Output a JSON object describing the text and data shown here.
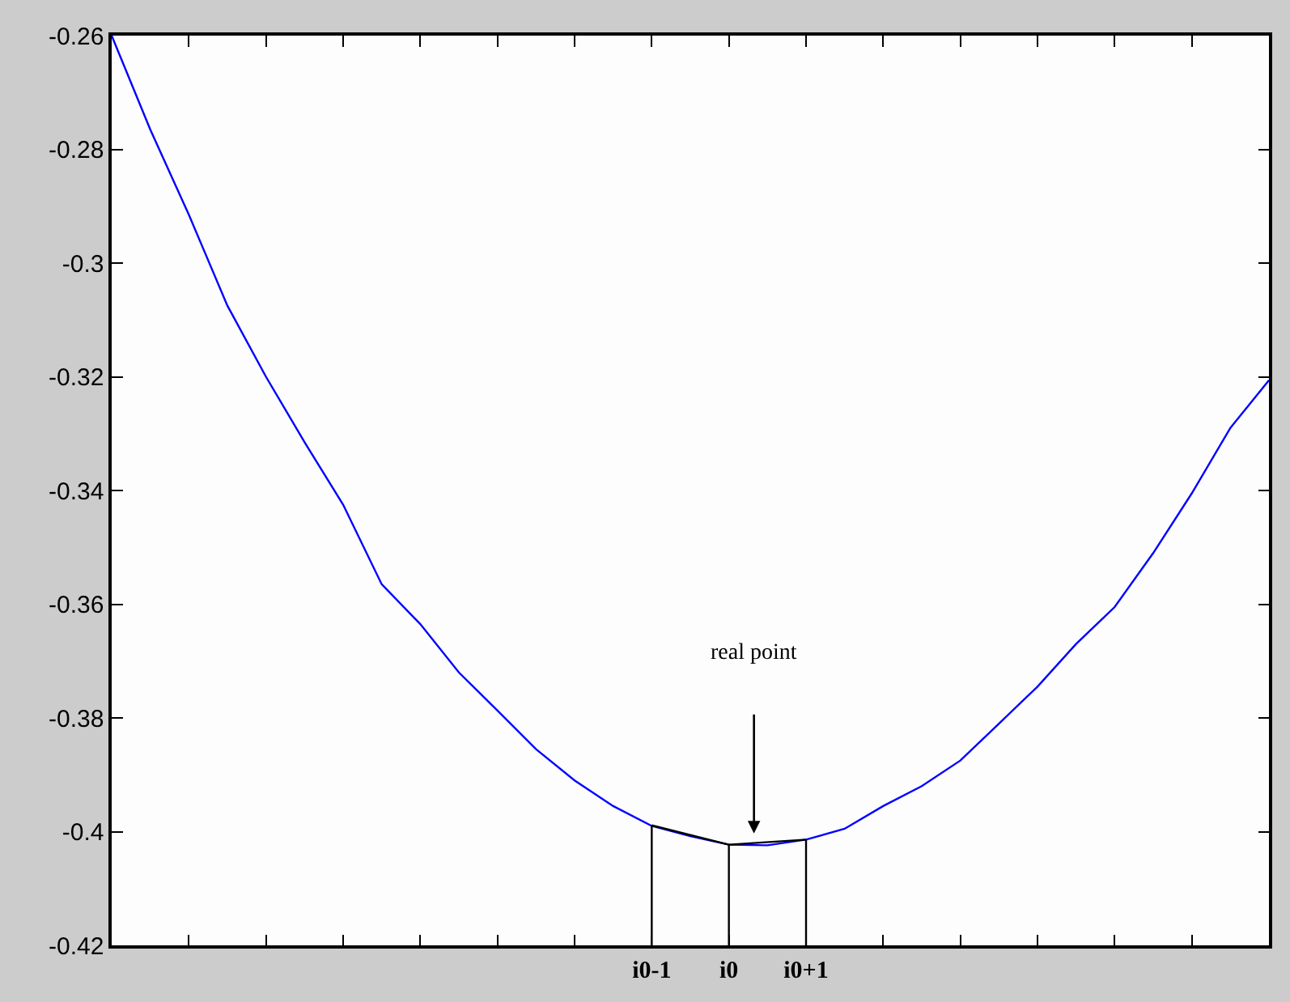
{
  "chart_data": {
    "type": "line",
    "ylim": [
      -0.42,
      -0.26
    ],
    "yticks": [
      -0.42,
      -0.4,
      -0.38,
      -0.36,
      -0.34,
      -0.32,
      -0.3,
      -0.28,
      -0.26
    ],
    "categories": [
      null,
      null,
      null,
      null,
      null,
      null,
      null,
      null,
      null,
      null,
      null,
      null,
      null,
      null,
      "i0-1",
      null,
      "i0",
      null,
      "i0+1",
      null,
      null,
      null,
      null,
      null,
      null,
      null,
      null,
      null,
      null,
      null,
      null
    ],
    "marker": "none",
    "line_style": "solid",
    "series": [
      {
        "color": "#0000ff",
        "values": [
          -0.26,
          -0.2765,
          -0.2915,
          -0.3075,
          -0.32,
          -0.3315,
          -0.3425,
          -0.3565,
          -0.3635,
          -0.372,
          -0.3787,
          -0.3855,
          -0.391,
          -0.3955,
          -0.399,
          -0.4008,
          -0.4023,
          -0.4024,
          -0.4014,
          -0.3995,
          -0.3955,
          -0.392,
          -0.3875,
          -0.381,
          -0.3745,
          -0.367,
          -0.3605,
          -0.351,
          -0.3405,
          -0.329,
          -0.3206
        ]
      },
      {
        "color": "#000000",
        "values": [
          null,
          null,
          null,
          null,
          null,
          null,
          null,
          null,
          null,
          null,
          null,
          null,
          null,
          null,
          -0.3989,
          null,
          -0.4023,
          null,
          -0.4014,
          null,
          null,
          null,
          null,
          null,
          null,
          null,
          null,
          null,
          null,
          null,
          null
        ],
        "errors": [
          null,
          null,
          null,
          null,
          null,
          null,
          null,
          null,
          null,
          null,
          null,
          null,
          null,
          null,
          [
            -0.42,
            -0.3989
          ],
          null,
          [
            -0.42,
            -0.4023
          ],
          null,
          [
            -0.42,
            -0.4014
          ],
          null,
          null,
          null,
          null,
          null,
          null,
          null,
          null,
          null,
          null,
          null,
          null
        ]
      }
    ],
    "annotations": [
      "real point"
    ]
  }
}
